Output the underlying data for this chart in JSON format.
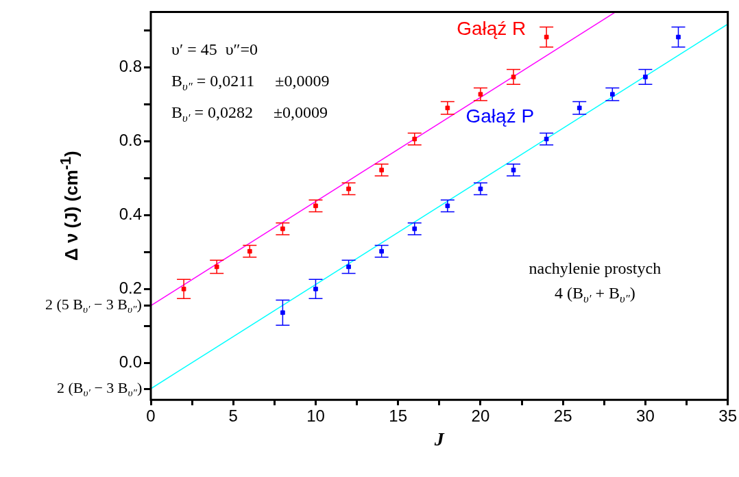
{
  "chart_data": {
    "type": "scatter",
    "xlabel": "J",
    "ylabel": "Δ ν (J) (cm$^{-1}$)",
    "xlim": [
      0,
      35
    ],
    "xticks": [
      0,
      {
        "value": 2.5,
        "label": null
      },
      5,
      {
        "value": 7.5,
        "label": null
      },
      10,
      {
        "value": 12.5,
        "label": null
      },
      15,
      {
        "value": 17.5,
        "label": null
      },
      20,
      {
        "value": 22.5,
        "label": null
      },
      25,
      {
        "value": 27.5,
        "label": null
      },
      30,
      {
        "value": 32.5,
        "label": null
      },
      35
    ],
    "ylim": [
      -0.1,
      0.95
    ],
    "yticks": [
      {
        "value": -0.07,
        "label": "2 (B$_{υ′}$ − 3 B$_{υ″}$)"
      },
      {
        "value": 0,
        "label": "0.0"
      },
      {
        "value": 0.1,
        "label": null
      },
      {
        "value": 0.155,
        "label": "2 (5 B$_{υ′}$ − 3 B$_{υ″}$)"
      },
      0.2,
      {
        "value": 0.3,
        "label": null
      },
      0.4,
      {
        "value": 0.5,
        "label": null
      },
      0.6,
      {
        "value": 0.7,
        "label": null
      },
      0.8,
      {
        "value": 0.9,
        "label": null
      }
    ],
    "grid": false,
    "legend": false,
    "annotations": [
      "υ′ = 45  υ″=0",
      "B$_{υ″}$ = 0,0211     ±0,0009",
      "B$_{υ′}$ = 0,0282     ±0,0009",
      "nachylenie prostych",
      "4 (B$_{υ′}$ + B$_{υ″}$)"
    ],
    "series": [
      {
        "name": "Gałąź R",
        "marker": "square",
        "color": "#ff0000",
        "x": [
          2,
          4,
          6,
          8,
          10,
          12,
          14,
          16,
          18,
          20,
          22,
          24
        ],
        "values": [
          0.2,
          0.26,
          0.302,
          0.363,
          0.425,
          0.471,
          0.522,
          0.606,
          0.69,
          0.727,
          0.774,
          0.882
        ],
        "errors": [
          0.026,
          0.018,
          0.016,
          0.016,
          0.016,
          0.016,
          0.016,
          0.016,
          0.017,
          0.017,
          0.02,
          0.027
        ]
      },
      {
        "name": "Gałąź P",
        "marker": "square",
        "color": "#0000ff",
        "x": [
          8,
          10,
          12,
          14,
          16,
          18,
          20,
          22,
          24,
          26,
          28,
          30,
          32
        ],
        "values": [
          0.136,
          0.2,
          0.26,
          0.302,
          0.363,
          0.425,
          0.471,
          0.522,
          0.606,
          0.69,
          0.727,
          0.774,
          0.882
        ],
        "errors": [
          0.034,
          0.026,
          0.018,
          0.016,
          0.016,
          0.016,
          0.016,
          0.016,
          0.016,
          0.017,
          0.017,
          0.02,
          0.027
        ]
      },
      {
        "type": "line",
        "marker": "none",
        "color": "#ff00ff",
        "x": [
          0,
          28.2
        ],
        "values": [
          0.155,
          0.95
        ]
      },
      {
        "type": "line",
        "marker": "none",
        "color": "#00ffff",
        "x": [
          0,
          35
        ],
        "values": [
          -0.07,
          0.917
        ]
      }
    ]
  }
}
